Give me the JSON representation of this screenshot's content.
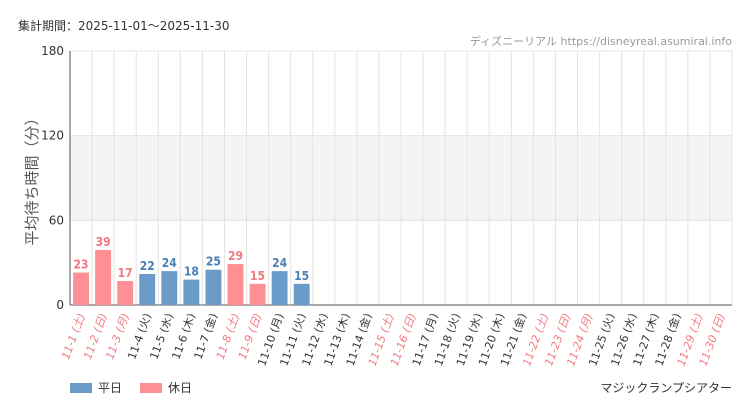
{
  "header": {
    "period": "集計期間：2025-11-01～2025-11-30",
    "source": "ディズニーリアル https://disneyreal.asumirai.info"
  },
  "legend": {
    "weekday": "平日",
    "holiday": "休日"
  },
  "facility": "マジックランプシアター",
  "colors": {
    "weekday": "#6b9bc8",
    "holiday": "#ff8f94",
    "weekday_label": "#4a7fb5",
    "holiday_label": "#f07a80",
    "band": "#f4f4f4",
    "grid": "#e4e4e4"
  },
  "chart_data": {
    "type": "bar",
    "title": "",
    "xlabel": "",
    "ylabel": "平均待ち時間（分）",
    "ylim": [
      0,
      180
    ],
    "yticks": [
      0,
      60,
      120,
      180
    ],
    "shaded_band": [
      60,
      120
    ],
    "categories": [
      "11-1 (土)",
      "11-2 (日)",
      "11-3 (月)",
      "11-4 (火)",
      "11-5 (水)",
      "11-6 (木)",
      "11-7 (金)",
      "11-8 (土)",
      "11-9 (日)",
      "11-10 (月)",
      "11-11 (火)",
      "11-12 (水)",
      "11-13 (木)",
      "11-14 (金)",
      "11-15 (土)",
      "11-16 (日)",
      "11-17 (月)",
      "11-18 (火)",
      "11-19 (水)",
      "11-20 (木)",
      "11-21 (金)",
      "11-22 (土)",
      "11-23 (日)",
      "11-24 (月)",
      "11-25 (火)",
      "11-26 (水)",
      "11-27 (木)",
      "11-28 (金)",
      "11-29 (土)",
      "11-30 (日)"
    ],
    "day_type": [
      "holiday",
      "holiday",
      "holiday",
      "weekday",
      "weekday",
      "weekday",
      "weekday",
      "holiday",
      "holiday",
      "weekday",
      "weekday",
      "weekday",
      "weekday",
      "weekday",
      "holiday",
      "holiday",
      "weekday",
      "weekday",
      "weekday",
      "weekday",
      "weekday",
      "holiday",
      "holiday",
      "holiday",
      "weekday",
      "weekday",
      "weekday",
      "weekday",
      "holiday",
      "holiday"
    ],
    "values": [
      23,
      39,
      17,
      22,
      24,
      18,
      25,
      29,
      15,
      24,
      15,
      null,
      null,
      null,
      null,
      null,
      null,
      null,
      null,
      null,
      null,
      null,
      null,
      null,
      null,
      null,
      null,
      null,
      null,
      null
    ],
    "legend_position": "bottom-left"
  }
}
